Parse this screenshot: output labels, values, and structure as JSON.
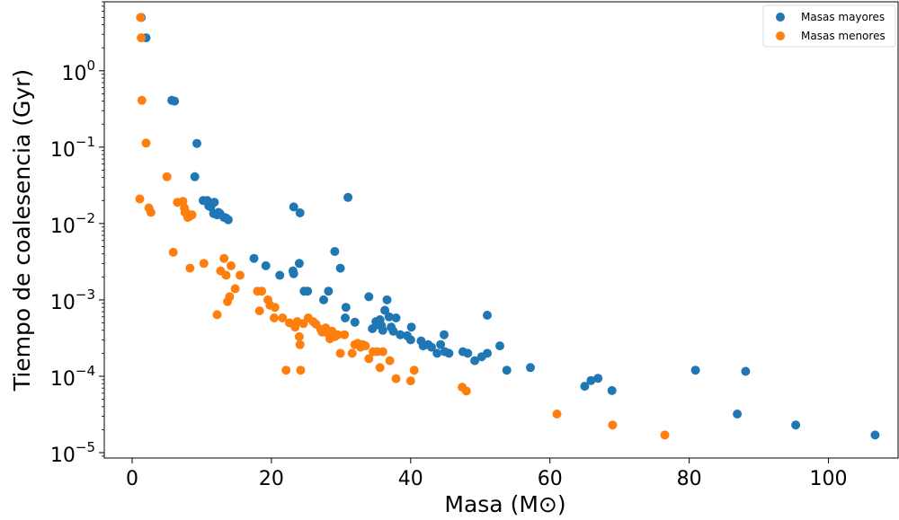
{
  "chart_data": {
    "type": "scatter",
    "title": "",
    "xlabel": "Masa (M⊙)",
    "ylabel": "Tiempo de coalesencia (Gyr)",
    "xlim": [
      -4,
      110
    ],
    "ylim": [
      8.5e-06,
      8
    ],
    "yscale": "log",
    "xticks": [
      0,
      20,
      40,
      60,
      80,
      100
    ],
    "yticks": [
      1e-05,
      0.0001,
      0.001,
      0.01,
      0.1,
      1
    ],
    "ytick_exponents": [
      "−5",
      "−4",
      "−3",
      "−2",
      "−1",
      "0"
    ],
    "ytick_base": "10",
    "grid": false,
    "legend_position": "top-right",
    "series": [
      {
        "name": "Masas mayores",
        "color": "#1f77b4",
        "points": [
          [
            1.3,
            5.0
          ],
          [
            2.0,
            2.7
          ],
          [
            5.7,
            0.41
          ],
          [
            6.1,
            0.4
          ],
          [
            9.3,
            0.112
          ],
          [
            9.0,
            0.041
          ],
          [
            10.2,
            0.02
          ],
          [
            10.8,
            0.02
          ],
          [
            11.0,
            0.017
          ],
          [
            11.3,
            0.0165
          ],
          [
            11.8,
            0.019
          ],
          [
            11.7,
            0.0135
          ],
          [
            12.4,
            0.014
          ],
          [
            12.2,
            0.013
          ],
          [
            12.6,
            0.0135
          ],
          [
            13.2,
            0.012
          ],
          [
            13.5,
            0.0118
          ],
          [
            13.8,
            0.0112
          ],
          [
            17.5,
            0.0035
          ],
          [
            19.2,
            0.0028
          ],
          [
            21.2,
            0.0021
          ],
          [
            23.1,
            0.0024
          ],
          [
            23.2,
            0.0022
          ],
          [
            23.2,
            0.0165
          ],
          [
            24.1,
            0.0138
          ],
          [
            24.0,
            0.003
          ],
          [
            24.7,
            0.0013
          ],
          [
            25.2,
            0.0013
          ],
          [
            27.5,
            0.001
          ],
          [
            28.2,
            0.0013
          ],
          [
            29.1,
            0.0043
          ],
          [
            29.9,
            0.0026
          ],
          [
            30.6,
            0.00058
          ],
          [
            30.7,
            0.0008
          ],
          [
            31.0,
            0.022
          ],
          [
            32.0,
            0.00051
          ],
          [
            34.0,
            0.0011
          ],
          [
            34.5,
            0.00042
          ],
          [
            35.0,
            0.00052
          ],
          [
            35.2,
            0.00047
          ],
          [
            35.6,
            0.00055
          ],
          [
            35.8,
            0.00046
          ],
          [
            36.0,
            0.0004
          ],
          [
            36.3,
            0.00073
          ],
          [
            36.6,
            0.001
          ],
          [
            36.9,
            0.0006
          ],
          [
            37.2,
            0.00044
          ],
          [
            37.5,
            0.00039
          ],
          [
            37.9,
            0.00058
          ],
          [
            38.5,
            0.00035
          ],
          [
            39.5,
            0.00034
          ],
          [
            40.0,
            0.0003
          ],
          [
            40.1,
            0.00044
          ],
          [
            41.5,
            0.00029
          ],
          [
            41.8,
            0.00025
          ],
          [
            42.5,
            0.00026
          ],
          [
            43.0,
            0.00024
          ],
          [
            43.8,
            0.0002
          ],
          [
            44.3,
            0.00026
          ],
          [
            44.8,
            0.00035
          ],
          [
            44.9,
            0.00021
          ],
          [
            45.5,
            0.0002
          ],
          [
            47.5,
            0.00021
          ],
          [
            48.2,
            0.0002
          ],
          [
            49.2,
            0.00016
          ],
          [
            50.2,
            0.00018
          ],
          [
            51.0,
            0.0002
          ],
          [
            51.0,
            0.00063
          ],
          [
            52.8,
            0.00025
          ],
          [
            53.8,
            0.00012
          ],
          [
            57.2,
            0.00013
          ],
          [
            65.0,
            7.4e-05
          ],
          [
            65.9,
            8.8e-05
          ],
          [
            66.9,
            9.4e-05
          ],
          [
            68.9,
            6.5e-05
          ],
          [
            80.9,
            0.00012
          ],
          [
            86.9,
            3.2e-05
          ],
          [
            88.1,
            0.000116
          ],
          [
            95.3,
            2.3e-05
          ],
          [
            106.7,
            1.7e-05
          ]
        ]
      },
      {
        "name": "Masas menores",
        "color": "#ff7f0e",
        "points": [
          [
            1.2,
            5.0
          ],
          [
            1.3,
            2.7
          ],
          [
            1.4,
            0.41
          ],
          [
            2.0,
            0.113
          ],
          [
            1.1,
            0.021
          ],
          [
            2.4,
            0.016
          ],
          [
            2.7,
            0.014
          ],
          [
            5.0,
            0.041
          ],
          [
            5.9,
            0.0042
          ],
          [
            6.5,
            0.019
          ],
          [
            7.3,
            0.0195
          ],
          [
            7.5,
            0.016
          ],
          [
            7.6,
            0.014
          ],
          [
            7.9,
            0.0135
          ],
          [
            8.0,
            0.012
          ],
          [
            8.3,
            0.0125
          ],
          [
            8.6,
            0.013
          ],
          [
            8.3,
            0.0026
          ],
          [
            10.3,
            0.003
          ],
          [
            12.2,
            0.00064
          ],
          [
            12.7,
            0.0024
          ],
          [
            13.2,
            0.0035
          ],
          [
            13.5,
            0.0021
          ],
          [
            13.7,
            0.00095
          ],
          [
            14.0,
            0.0011
          ],
          [
            14.2,
            0.0028
          ],
          [
            14.8,
            0.0014
          ],
          [
            15.5,
            0.0021
          ],
          [
            18.0,
            0.0013
          ],
          [
            18.3,
            0.00072
          ],
          [
            18.6,
            0.0013
          ],
          [
            19.5,
            0.001
          ],
          [
            19.8,
            0.00085
          ],
          [
            20.5,
            0.0008
          ],
          [
            20.4,
            0.00058
          ],
          [
            21.6,
            0.00058
          ],
          [
            22.1,
            0.00012
          ],
          [
            22.6,
            0.0005
          ],
          [
            23.4,
            0.00044
          ],
          [
            23.7,
            0.00052
          ],
          [
            24.0,
            0.00033
          ],
          [
            24.1,
            0.00026
          ],
          [
            24.2,
            0.00012
          ],
          [
            24.6,
            0.00049
          ],
          [
            25.3,
            0.00058
          ],
          [
            26.0,
            0.00052
          ],
          [
            26.4,
            0.00048
          ],
          [
            27.1,
            0.00041
          ],
          [
            27.3,
            0.00038
          ],
          [
            27.8,
            0.00043
          ],
          [
            28.2,
            0.00036
          ],
          [
            28.4,
            0.00031
          ],
          [
            28.7,
            0.00039
          ],
          [
            29.1,
            0.00033
          ],
          [
            29.5,
            0.00035
          ],
          [
            29.9,
            0.0002
          ],
          [
            30.5,
            0.00035
          ],
          [
            31.6,
            0.0002
          ],
          [
            32.0,
            0.00026
          ],
          [
            32.4,
            0.00027
          ],
          [
            32.8,
            0.00024
          ],
          [
            33.1,
            0.00026
          ],
          [
            33.5,
            0.00025
          ],
          [
            34.0,
            0.00017
          ],
          [
            34.6,
            0.00021
          ],
          [
            35.2,
            0.00021
          ],
          [
            35.6,
            0.00013
          ],
          [
            36.0,
            0.00021
          ],
          [
            37.0,
            0.00016
          ],
          [
            37.9,
            9.3e-05
          ],
          [
            40.0,
            8.7e-05
          ],
          [
            40.5,
            0.00012
          ],
          [
            47.4,
            7.2e-05
          ],
          [
            48.0,
            6.4e-05
          ],
          [
            61.0,
            3.2e-05
          ],
          [
            69.0,
            2.3e-05
          ],
          [
            76.5,
            1.7e-05
          ]
        ]
      }
    ]
  }
}
